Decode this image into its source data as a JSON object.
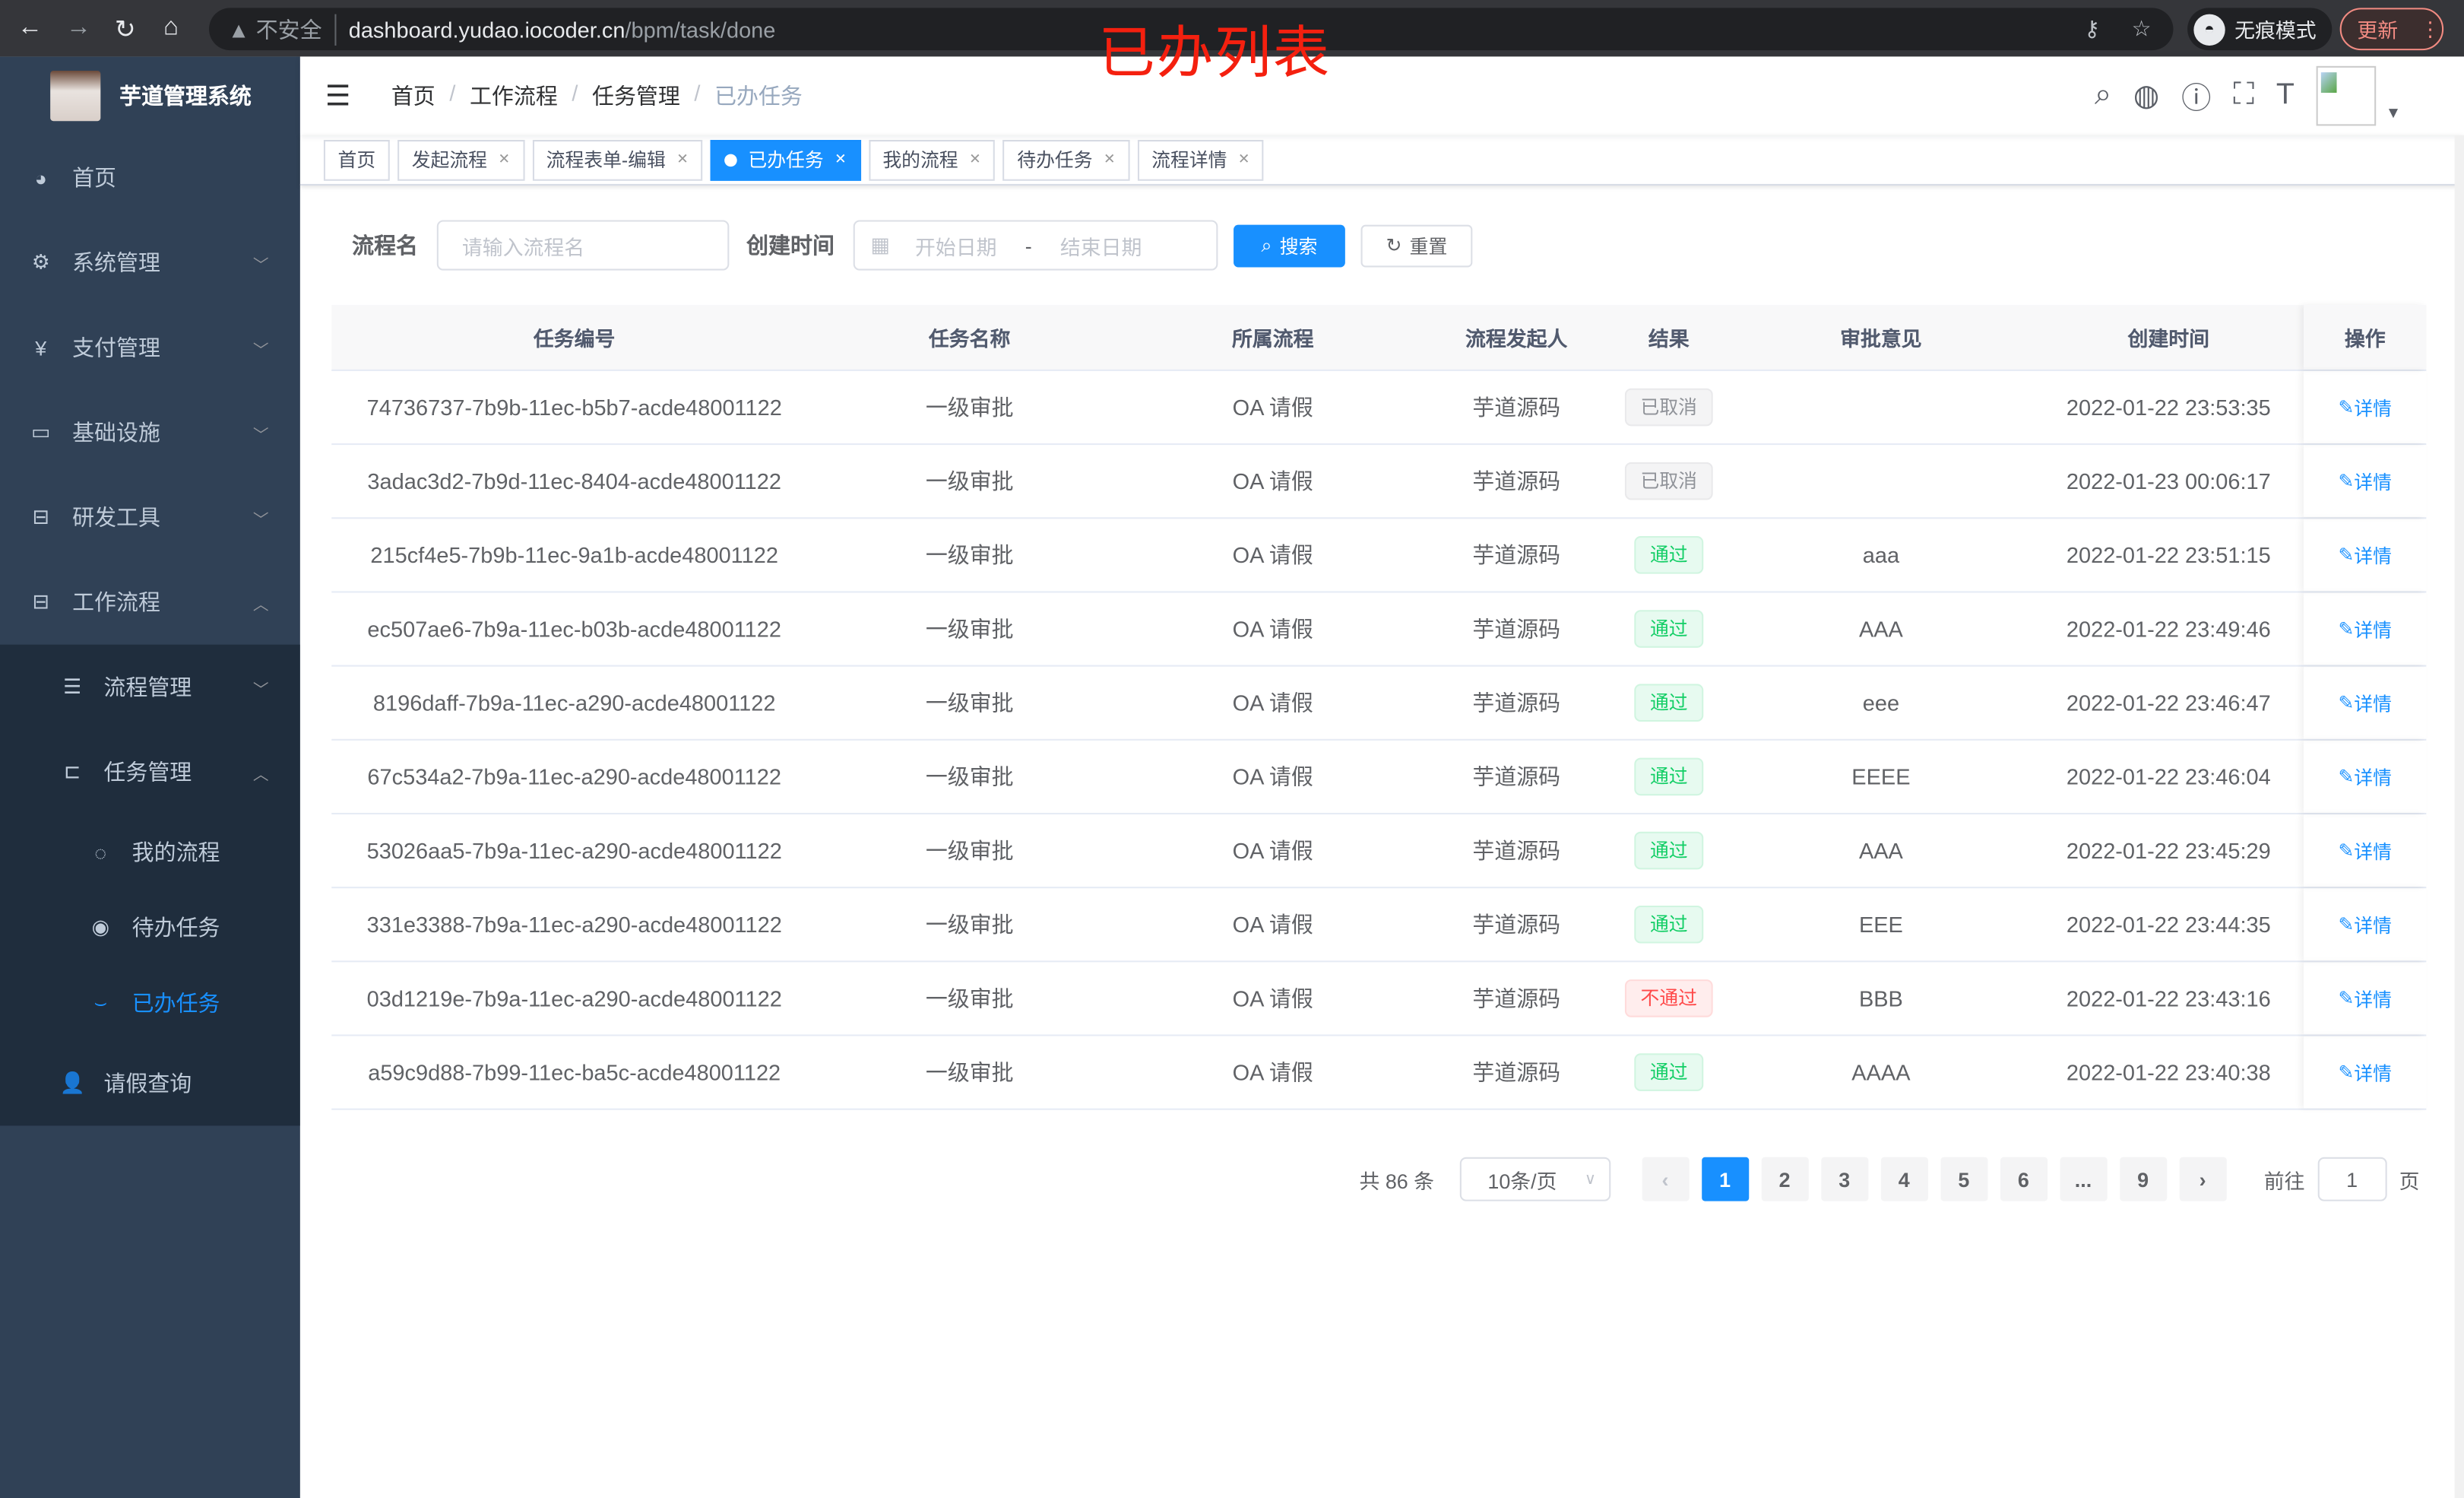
{
  "browser": {
    "url_host": "dashboard.yudao.iocoder.cn",
    "url_path": "/bpm/task/done",
    "insecure": "不安全",
    "incognito": "无痕模式",
    "update": "更新"
  },
  "annotation": "已办列表",
  "sidebar": {
    "title": "芋道管理系统",
    "items": [
      {
        "label": "首页",
        "icon": "dashboard-icon"
      },
      {
        "label": "系统管理",
        "icon": "gear-icon"
      },
      {
        "label": "支付管理",
        "icon": "yen-icon"
      },
      {
        "label": "基础设施",
        "icon": "monitor-icon"
      },
      {
        "label": "研发工具",
        "icon": "toolbox-icon"
      },
      {
        "label": "工作流程",
        "icon": "toolbox-icon"
      }
    ],
    "workflow": [
      {
        "label": "流程管理"
      },
      {
        "label": "任务管理"
      }
    ],
    "tasks": [
      {
        "label": "我的流程"
      },
      {
        "label": "待办任务"
      },
      {
        "label": "已办任务"
      }
    ],
    "leave": "请假查询"
  },
  "breadcrumb": [
    "首页",
    "工作流程",
    "任务管理",
    "已办任务"
  ],
  "tags": [
    "首页",
    "发起流程",
    "流程表单-编辑",
    "已办任务",
    "我的流程",
    "待办任务",
    "流程详情"
  ],
  "search": {
    "name_label": "流程名",
    "name_placeholder": "请输入流程名",
    "time_label": "创建时间",
    "start_placeholder": "开始日期",
    "sep": "-",
    "end_placeholder": "结束日期",
    "search": "搜索",
    "reset": "重置"
  },
  "table": {
    "headers": [
      "任务编号",
      "任务名称",
      "所属流程",
      "流程发起人",
      "结果",
      "审批意见",
      "创建时间",
      "操作"
    ],
    "rows": [
      [
        "74736737-7b9b-11ec-b5b7-acde48001122",
        "一级审批",
        "OA 请假",
        "芋道源码",
        "已取消",
        "",
        "2022-01-22 23:53:35",
        "详情"
      ],
      [
        "3adac3d2-7b9d-11ec-8404-acde48001122",
        "一级审批",
        "OA 请假",
        "芋道源码",
        "已取消",
        "",
        "2022-01-23 00:06:17",
        "详情"
      ],
      [
        "215cf4e5-7b9b-11ec-9a1b-acde48001122",
        "一级审批",
        "OA 请假",
        "芋道源码",
        "通过",
        "aaa",
        "2022-01-22 23:51:15",
        "详情"
      ],
      [
        "ec507ae6-7b9a-11ec-b03b-acde48001122",
        "一级审批",
        "OA 请假",
        "芋道源码",
        "通过",
        "AAA",
        "2022-01-22 23:49:46",
        "详情"
      ],
      [
        "8196daff-7b9a-11ec-a290-acde48001122",
        "一级审批",
        "OA 请假",
        "芋道源码",
        "通过",
        "eee",
        "2022-01-22 23:46:47",
        "详情"
      ],
      [
        "67c534a2-7b9a-11ec-a290-acde48001122",
        "一级审批",
        "OA 请假",
        "芋道源码",
        "通过",
        "EEEE",
        "2022-01-22 23:46:04",
        "详情"
      ],
      [
        "53026aa5-7b9a-11ec-a290-acde48001122",
        "一级审批",
        "OA 请假",
        "芋道源码",
        "通过",
        "AAA",
        "2022-01-22 23:45:29",
        "详情"
      ],
      [
        "331e3388-7b9a-11ec-a290-acde48001122",
        "一级审批",
        "OA 请假",
        "芋道源码",
        "通过",
        "EEE",
        "2022-01-22 23:44:35",
        "详情"
      ],
      [
        "03d1219e-7b9a-11ec-a290-acde48001122",
        "一级审批",
        "OA 请假",
        "芋道源码",
        "不通过",
        "BBB",
        "2022-01-22 23:43:16",
        "详情"
      ],
      [
        "a59c9d88-7b99-11ec-ba5c-acde48001122",
        "一级审批",
        "OA 请假",
        "芋道源码",
        "通过",
        "AAAA",
        "2022-01-22 23:40:38",
        "详情"
      ]
    ]
  },
  "pagination": {
    "total": "共 86 条",
    "page_size": "10条/页",
    "pages": [
      "1",
      "2",
      "3",
      "4",
      "5",
      "6",
      "...",
      "9"
    ],
    "current": "1",
    "goto_label": "前往",
    "goto_value": "1",
    "goto_suffix": "页"
  },
  "colors": {
    "primary": "#1890ff",
    "sidebar": "#304156",
    "annotation": "#f4200f"
  }
}
